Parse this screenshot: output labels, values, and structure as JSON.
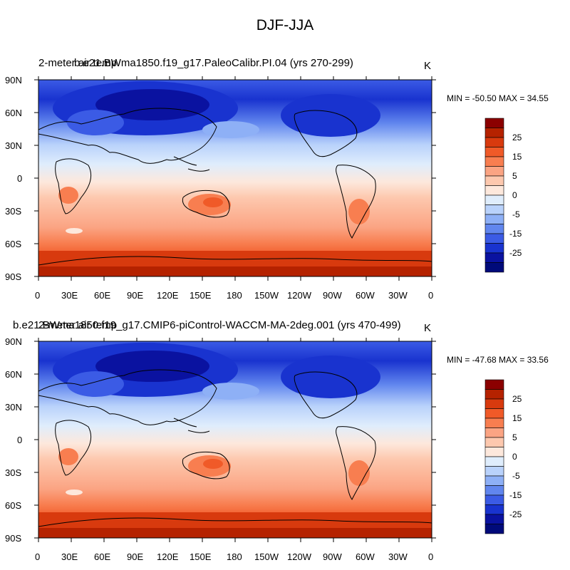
{
  "title": "DJF-JJA",
  "panels": [
    {
      "left_title": "2-meter air temp",
      "center_title": "b.e21.BWma1850.f19_g17.PaleoCalibr.PI.04 (yrs 270-299)",
      "units": "K",
      "min_max": "MIN = -50.50 MAX =  34.55"
    },
    {
      "left_title": "2-meter air temp",
      "center_title": "b.e21.BWma1850.f19_g17.CMIP6-piControl-WACCM-MA-2deg.001 (yrs 470-499)",
      "units": "K",
      "min_max": "MIN = -47.68 MAX =  33.56"
    }
  ],
  "axes": {
    "lat_labels": [
      "90N",
      "60N",
      "30N",
      "0",
      "30S",
      "60S",
      "90S"
    ],
    "lon_labels": [
      "0",
      "30E",
      "60E",
      "90E",
      "120E",
      "150E",
      "180",
      "150W",
      "120W",
      "90W",
      "60W",
      "30W",
      "0"
    ]
  },
  "colorbar": {
    "labels": [
      "25",
      "15",
      "5",
      "0",
      "-5",
      "-15",
      "-25"
    ],
    "colors": [
      "#8b0000",
      "#b52200",
      "#d83a0e",
      "#f05a28",
      "#f87e50",
      "#fba483",
      "#fdc8ae",
      "#fde8dc",
      "#dfedfc",
      "#b9d2fb",
      "#8eb0f6",
      "#6186ee",
      "#3b5be5",
      "#1933cf",
      "#0a12a0",
      "#000a7a"
    ]
  }
}
